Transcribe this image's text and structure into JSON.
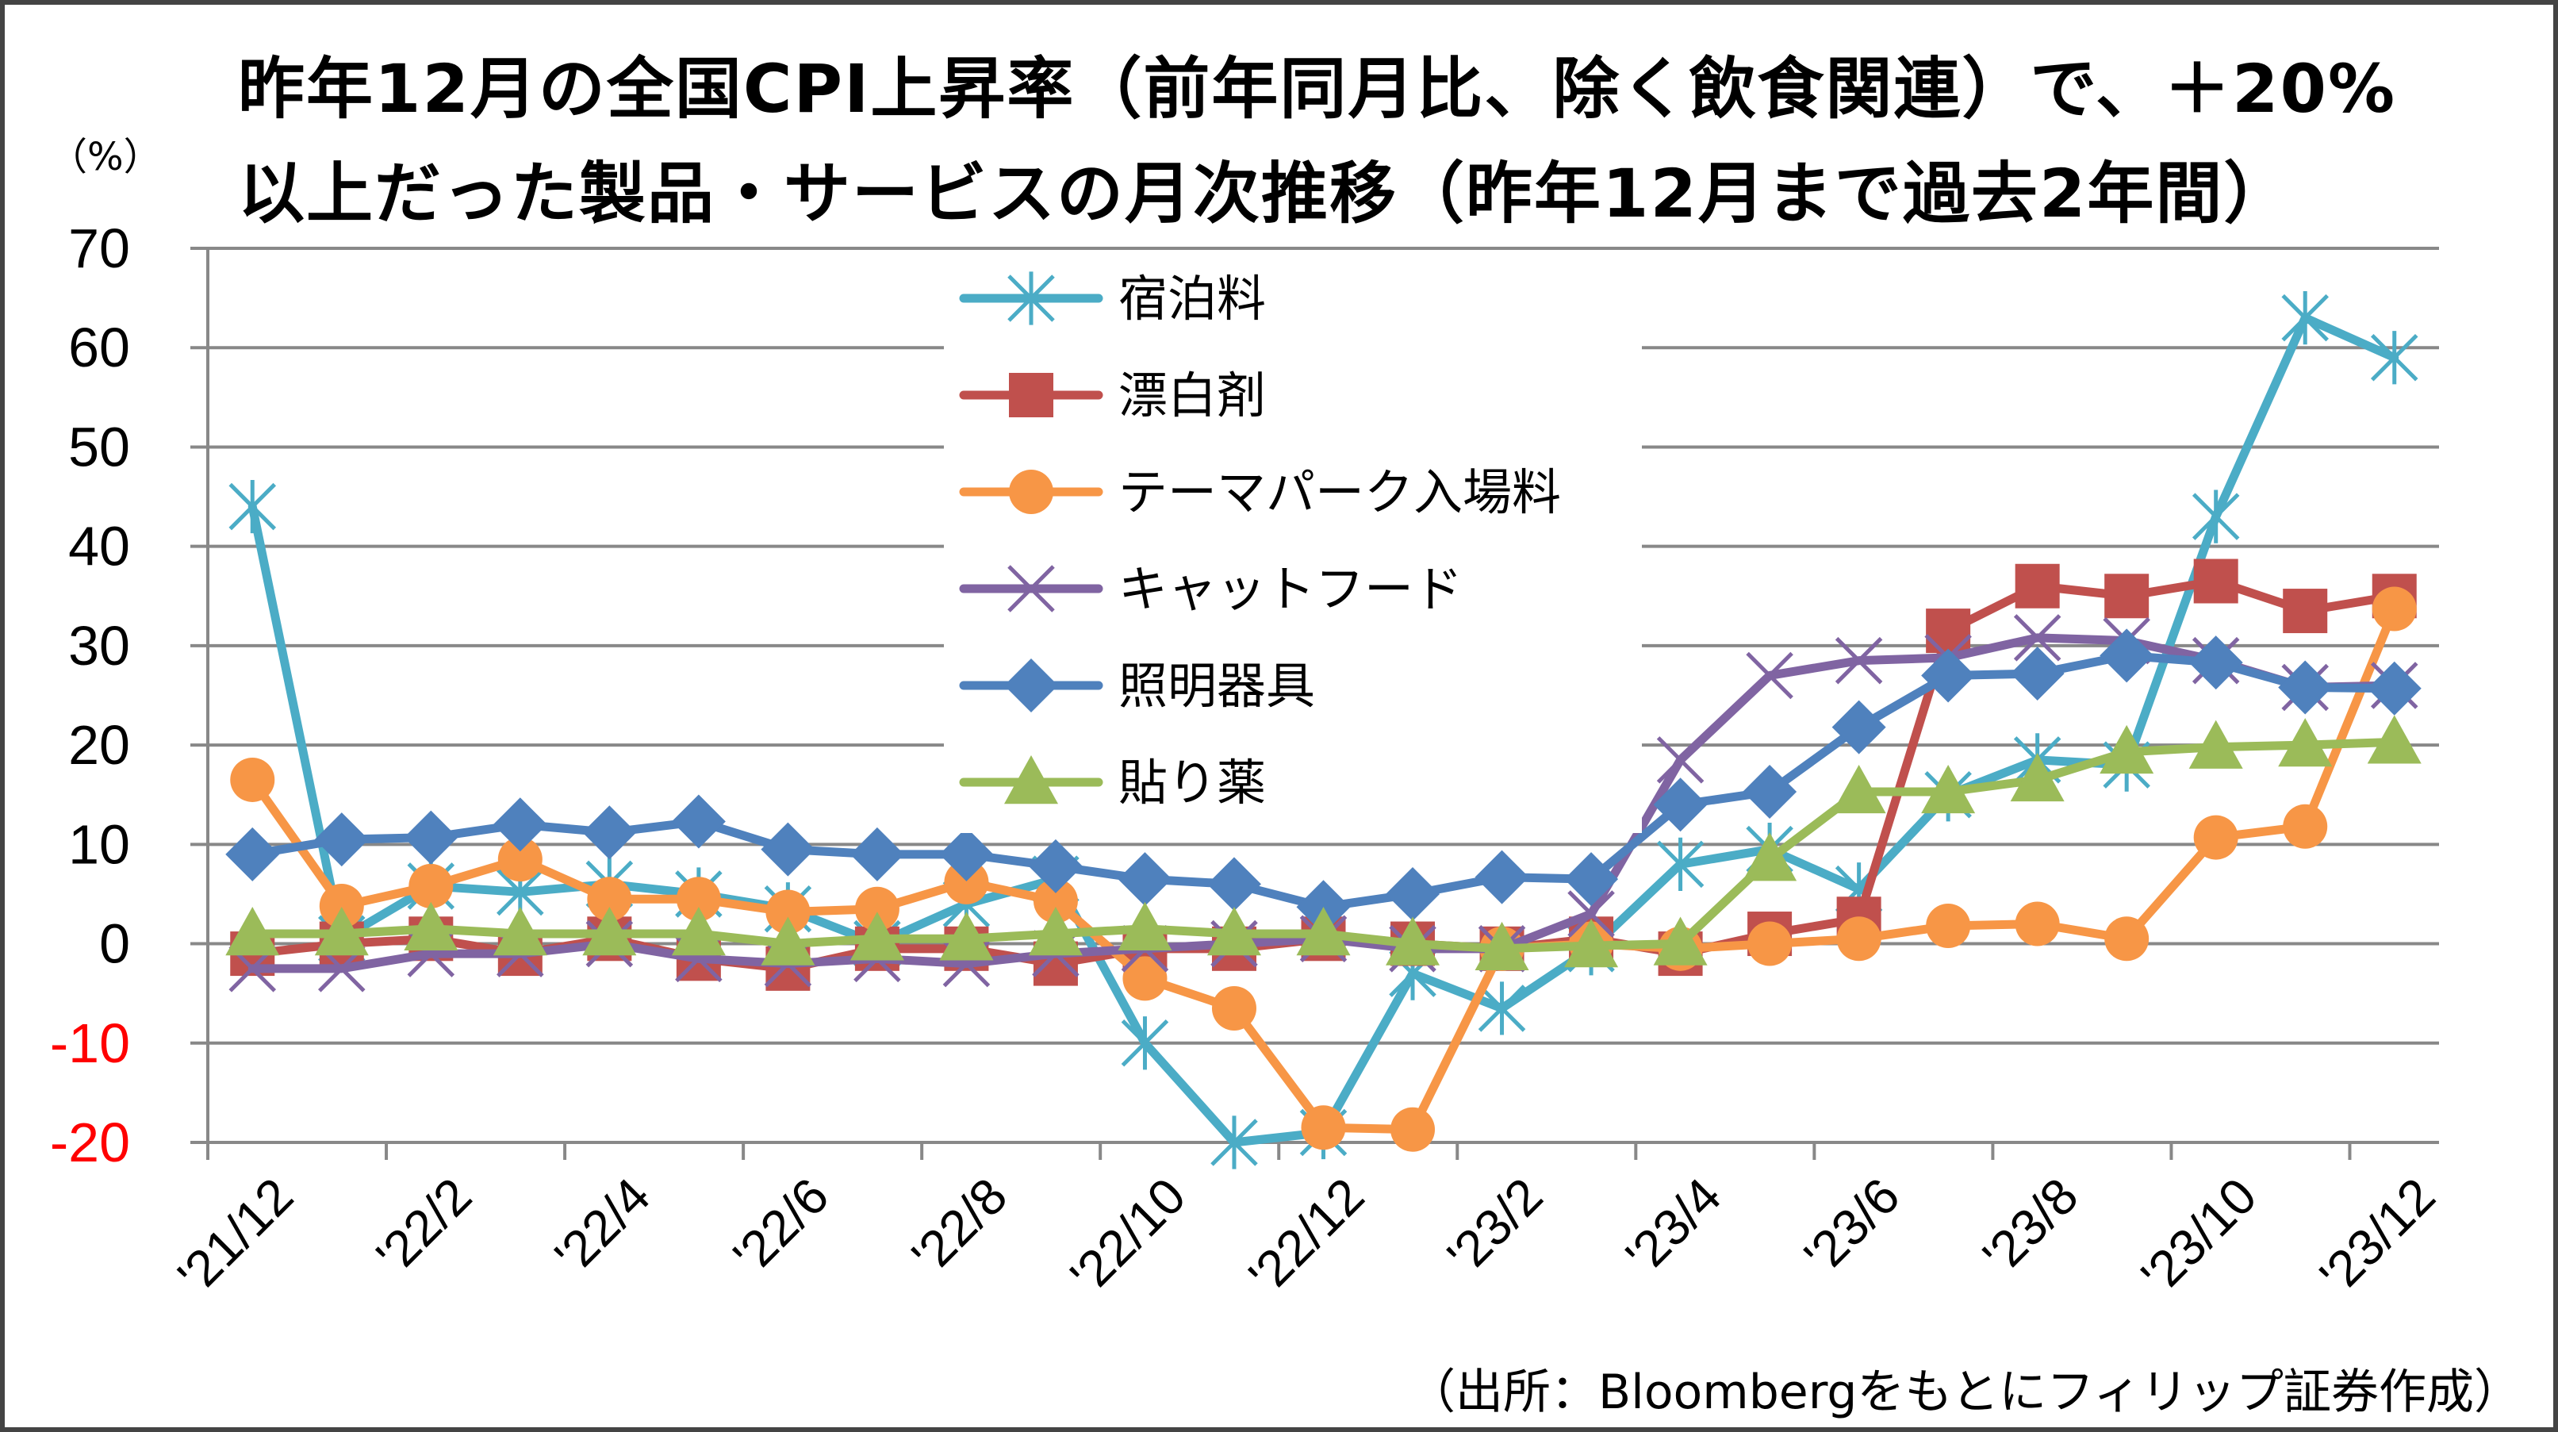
{
  "title": {
    "line1": "昨年12月の全国CPI上昇率（前年同月比、除く飲食関連）で、＋20%",
    "line2": "以上だった製品・サービスの月次推移（昨年12月まで過去2年間）"
  },
  "unit_label": "（%）",
  "source": "（出所：Bloombergをもとにフィリップ証券作成）",
  "chart_data": {
    "type": "line",
    "categories": [
      "'21/12",
      "'22/1",
      "'22/2",
      "'22/3",
      "'22/4",
      "'22/5",
      "'22/6",
      "'22/7",
      "'22/8",
      "'22/9",
      "'22/10",
      "'22/11",
      "'22/12",
      "'23/1",
      "'23/2",
      "'23/3",
      "'23/4",
      "'23/5",
      "'23/6",
      "'23/7",
      "'23/8",
      "'23/9",
      "'23/10",
      "'23/11",
      "'23/12"
    ],
    "x_tick_labels": [
      "'21/12",
      "'22/2",
      "'22/4",
      "'22/6",
      "'22/8",
      "'22/10",
      "'22/12",
      "'23/2",
      "'23/4",
      "'23/6",
      "'23/8",
      "'23/10",
      "'23/12"
    ],
    "y_ticks": [
      "70",
      "60",
      "50",
      "40",
      "30",
      "20",
      "10",
      "0",
      "-10",
      "-20"
    ],
    "ylim": [
      -20,
      70
    ],
    "grid": true,
    "negative_tick_color": "#ff0000",
    "series": [
      {
        "name": "宿泊料",
        "color": "#4bacc6",
        "marker": "star",
        "values": [
          44,
          0.5,
          5.8,
          5.2,
          6,
          5,
          3.5,
          0,
          4,
          6.5,
          -10,
          -20,
          -19,
          -3,
          -6.5,
          -0.5,
          8,
          9.5,
          5.5,
          15,
          18.5,
          18,
          43,
          63,
          59
        ]
      },
      {
        "name": "漂白剤",
        "color": "#c0504d",
        "marker": "square",
        "values": [
          -1,
          0,
          0.5,
          -1,
          0.5,
          -1.5,
          -2.5,
          -0.5,
          -0.5,
          -2,
          -0.5,
          -0.5,
          0.5,
          0,
          -0.5,
          0.5,
          -1,
          1,
          2.5,
          31.5,
          36,
          35,
          36.5,
          33.5,
          35
        ]
      },
      {
        "name": "テーマパーク入場料",
        "color": "#f79646",
        "marker": "circle",
        "values": [
          16.5,
          3.8,
          5.8,
          8.5,
          4.5,
          4.5,
          3.2,
          3.5,
          6.2,
          4.3,
          -3.5,
          -6.5,
          -18.5,
          -18.7,
          -0.5,
          0,
          -0.5,
          0,
          0.5,
          1.8,
          2,
          0.5,
          10.7,
          11.8,
          33.7
        ]
      },
      {
        "name": "キャットフード",
        "color": "#8064a2",
        "marker": "x",
        "values": [
          -2.5,
          -2.5,
          -1,
          -1,
          0,
          -1.5,
          -2,
          -1.5,
          -2,
          -1,
          -0.5,
          0,
          0.5,
          -0.5,
          -0.5,
          3,
          18.5,
          27,
          28.5,
          28.8,
          30.8,
          30.5,
          28.5,
          25.8,
          26
        ]
      },
      {
        "name": "照明器具",
        "color": "#4f81bd",
        "marker": "diamond",
        "values": [
          9,
          10.5,
          10.7,
          12,
          11.2,
          12.3,
          9.5,
          9,
          9,
          7.8,
          6.5,
          6,
          3.7,
          5,
          6.7,
          6.5,
          14,
          15.3,
          21.8,
          27,
          27.2,
          29,
          28.3,
          25.8,
          25.7
        ]
      },
      {
        "name": "貼り薬",
        "color": "#9bbb59",
        "marker": "triangle",
        "values": [
          1,
          1,
          1.5,
          1,
          1,
          1,
          0,
          0.5,
          0.5,
          1,
          1.5,
          1,
          1,
          0,
          -0.5,
          -0.2,
          0,
          8.5,
          15.3,
          15.3,
          16.5,
          19.3,
          19.8,
          20,
          20.3
        ]
      }
    ]
  }
}
